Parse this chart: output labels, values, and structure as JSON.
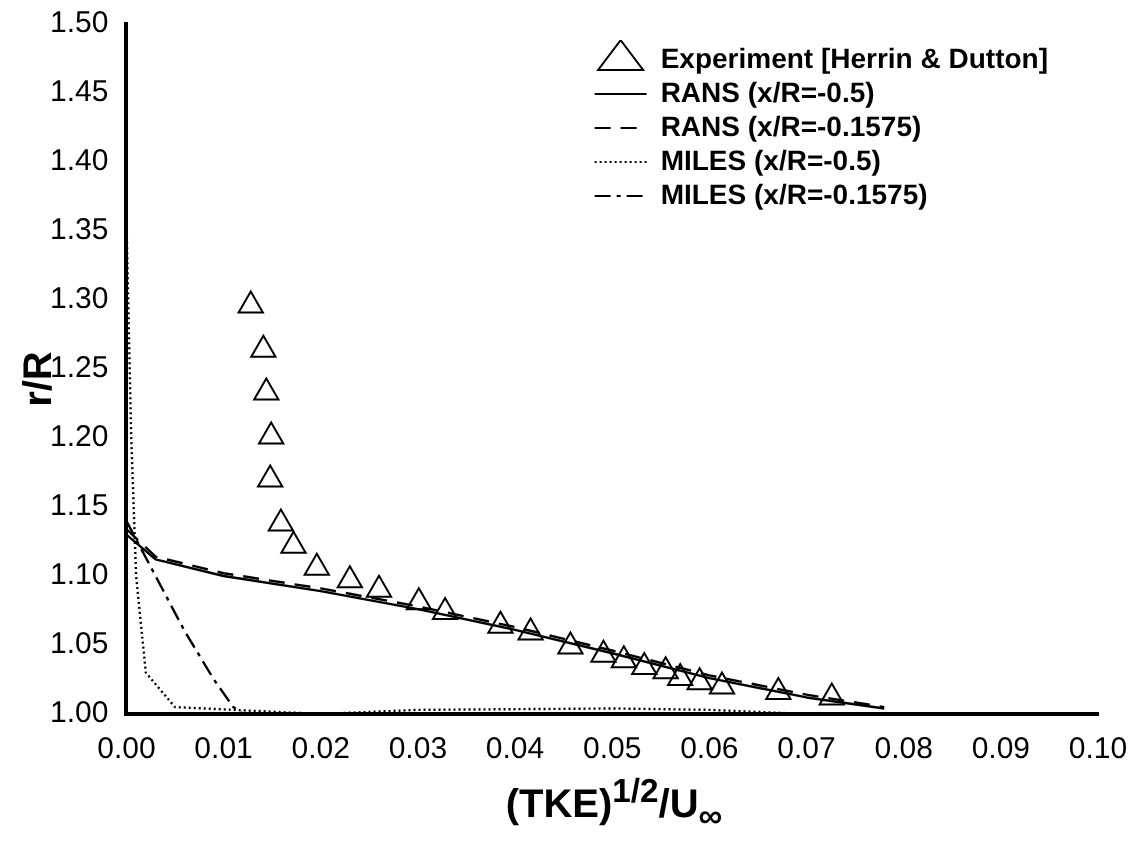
{
  "chart_data": {
    "type": "line",
    "xlabel": "(TKE)$^{1/2}$/U$_{∞}$",
    "ylabel": "r/R",
    "xlim": [
      0,
      0.1
    ],
    "xticks": [
      {
        "value": 0,
        "label": "0.00"
      },
      {
        "value": 0.01,
        "label": "0.01"
      },
      {
        "value": 0.02,
        "label": "0.02"
      },
      {
        "value": 0.03,
        "label": "0.03"
      },
      {
        "value": 0.04,
        "label": "0.04"
      },
      {
        "value": 0.05,
        "label": "0.05"
      },
      {
        "value": 0.06,
        "label": "0.06"
      },
      {
        "value": 0.07,
        "label": "0.07"
      },
      {
        "value": 0.08,
        "label": "0.08"
      },
      {
        "value": 0.09,
        "label": "0.09"
      },
      {
        "value": 0.1,
        "label": "0.10"
      }
    ],
    "ylim": [
      1,
      1.5
    ],
    "yticks": [
      {
        "value": 1,
        "label": "1.00"
      },
      {
        "value": 1.05,
        "label": "1.05"
      },
      {
        "value": 1.1,
        "label": "1.10"
      },
      {
        "value": 1.15,
        "label": "1.15"
      },
      {
        "value": 1.2,
        "label": "1.20"
      },
      {
        "value": 1.25,
        "label": "1.25"
      },
      {
        "value": 1.3,
        "label": "1.30"
      },
      {
        "value": 1.35,
        "label": "1.35"
      },
      {
        "value": 1.4,
        "label": "1.40"
      },
      {
        "value": 1.45,
        "label": "1.45"
      },
      {
        "value": 1.5,
        "label": "1.50"
      }
    ],
    "grid": false,
    "legend": "top right",
    "series": [
      {
        "name": "Experiment [Herrin & Dutton]",
        "type": "scatter",
        "marker": "triangle",
        "color": "#000000",
        "x": [
          0.0128,
          0.0141,
          0.0144,
          0.0149,
          0.0148,
          0.0159,
          0.0172,
          0.0196,
          0.023,
          0.026,
          0.0301,
          0.0328,
          0.0385,
          0.0416,
          0.0457,
          0.0491,
          0.0512,
          0.0533,
          0.0555,
          0.057,
          0.059,
          0.0613,
          0.0671,
          0.0726
        ],
        "values": [
          1.296,
          1.264,
          1.233,
          1.201,
          1.17,
          1.138,
          1.122,
          1.106,
          1.097,
          1.09,
          1.081,
          1.074,
          1.064,
          1.059,
          1.049,
          1.043,
          1.039,
          1.034,
          1.031,
          1.026,
          1.023,
          1.02,
          1.016,
          1.012
        ]
      },
      {
        "name": "RANS (x/R=-0.5)",
        "line_style": "solid",
        "color": "#000000",
        "x": [
          0,
          0.003,
          0.01,
          0.02,
          0.03,
          0.04,
          0.05,
          0.06,
          0.07,
          0.078
        ],
        "values": [
          1.13,
          1.112,
          1.1,
          1.089,
          1.076,
          1.061,
          1.044,
          1.026,
          1.012,
          1.004
        ]
      },
      {
        "name": "RANS (x/R=-0.1575)",
        "line_style": "dashed",
        "color": "#000000",
        "x": [
          0,
          0.003,
          0.01,
          0.02,
          0.03,
          0.04,
          0.05,
          0.06,
          0.07,
          0.078
        ],
        "values": [
          1.134,
          1.114,
          1.102,
          1.091,
          1.078,
          1.063,
          1.046,
          1.028,
          1.014,
          1.005
        ]
      },
      {
        "name": "MILES (x/R=-0.5)",
        "line_style": "dotted",
        "color": "#000000",
        "x": [
          0,
          0.0005,
          0.001,
          0.002,
          0.005,
          0.02,
          0.03,
          0.05,
          0.06,
          0.07
        ],
        "values": [
          1.36,
          1.2,
          1.1,
          1.03,
          1.005,
          1.0,
          1.003,
          1.004,
          1.003,
          1.0
        ]
      },
      {
        "name": "MILES (x/R=-0.1575)",
        "line_style": "dashdot",
        "color": "#000000",
        "x": [
          0,
          0.003,
          0.006,
          0.009,
          0.011,
          0.012
        ],
        "values": [
          1.14,
          1.1,
          1.06,
          1.025,
          1.005,
          1.0
        ]
      }
    ]
  }
}
